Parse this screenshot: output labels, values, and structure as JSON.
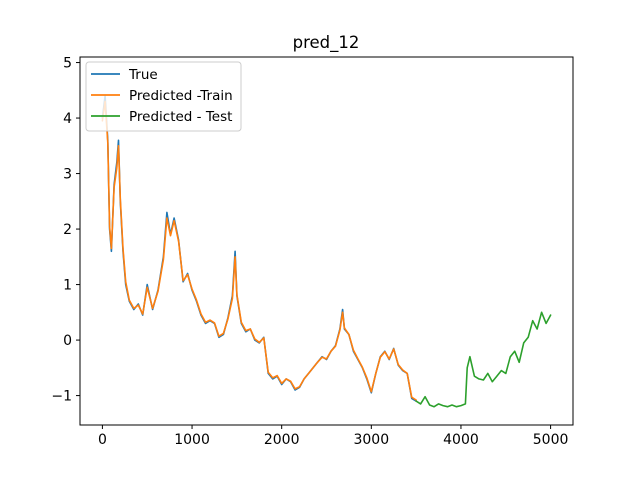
{
  "chart_data": {
    "type": "line",
    "title": "pred_12",
    "xlabel": "",
    "ylabel": "",
    "xlim": [
      -250,
      5250
    ],
    "ylim": [
      -1.53,
      5.1
    ],
    "xticks": [
      0,
      1000,
      2000,
      3000,
      4000,
      5000
    ],
    "yticks": [
      -1,
      0,
      1,
      2,
      3,
      4,
      5
    ],
    "xtick_labels": [
      "0",
      "1000",
      "2000",
      "3000",
      "4000",
      "5000"
    ],
    "ytick_labels": [
      "−1",
      "0",
      "1",
      "2",
      "3",
      "4",
      "5"
    ],
    "grid": false,
    "legend_position": "upper left",
    "series": [
      {
        "name": "True",
        "color": "#1f77b4",
        "x": [
          0,
          30,
          60,
          80,
          100,
          130,
          160,
          180,
          200,
          230,
          260,
          300,
          350,
          400,
          450,
          500,
          560,
          620,
          680,
          720,
          760,
          800,
          850,
          900,
          950,
          1000,
          1050,
          1100,
          1150,
          1200,
          1250,
          1300,
          1350,
          1400,
          1450,
          1480,
          1500,
          1550,
          1600,
          1650,
          1700,
          1750,
          1800,
          1850,
          1900,
          1950,
          2000,
          2050,
          2100,
          2150,
          2200,
          2250,
          2300,
          2350,
          2400,
          2450,
          2500,
          2550,
          2600,
          2650,
          2680,
          2700,
          2750,
          2800,
          2850,
          2900,
          2950,
          3000,
          3050,
          3100,
          3150,
          3200,
          3250,
          3300,
          3350,
          3400,
          3450,
          3500
        ],
        "y": [
          4.0,
          4.4,
          3.6,
          2.0,
          1.6,
          2.8,
          3.2,
          3.6,
          2.5,
          1.6,
          1.0,
          0.7,
          0.55,
          0.65,
          0.45,
          1.0,
          0.55,
          0.9,
          1.5,
          2.3,
          1.9,
          2.2,
          1.8,
          1.05,
          1.2,
          0.9,
          0.7,
          0.45,
          0.3,
          0.35,
          0.3,
          0.05,
          0.1,
          0.4,
          0.8,
          1.6,
          0.8,
          0.3,
          0.15,
          0.2,
          0.0,
          -0.05,
          0.05,
          -0.6,
          -0.7,
          -0.65,
          -0.8,
          -0.7,
          -0.75,
          -0.9,
          -0.85,
          -0.7,
          -0.6,
          -0.5,
          -0.4,
          -0.3,
          -0.35,
          -0.2,
          -0.1,
          0.2,
          0.55,
          0.2,
          0.1,
          -0.2,
          -0.35,
          -0.5,
          -0.7,
          -0.95,
          -0.6,
          -0.3,
          -0.2,
          -0.35,
          -0.15,
          -0.45,
          -0.55,
          -0.6,
          -1.05,
          -1.1
        ]
      },
      {
        "name": "Predicted -Train",
        "color": "#ff7f0e",
        "x": [
          0,
          30,
          60,
          80,
          100,
          130,
          160,
          180,
          200,
          230,
          260,
          300,
          350,
          400,
          450,
          500,
          560,
          620,
          680,
          720,
          760,
          800,
          850,
          900,
          950,
          1000,
          1050,
          1100,
          1150,
          1200,
          1250,
          1300,
          1350,
          1400,
          1450,
          1480,
          1500,
          1550,
          1600,
          1650,
          1700,
          1750,
          1800,
          1850,
          1900,
          1950,
          2000,
          2050,
          2100,
          2150,
          2200,
          2250,
          2300,
          2350,
          2400,
          2450,
          2500,
          2550,
          2600,
          2650,
          2680,
          2700,
          2750,
          2800,
          2850,
          2900,
          2950,
          3000,
          3050,
          3100,
          3150,
          3200,
          3250,
          3300,
          3350,
          3400,
          3450,
          3500
        ],
        "y": [
          3.95,
          4.3,
          3.55,
          2.05,
          1.65,
          2.75,
          3.1,
          3.5,
          2.55,
          1.65,
          1.05,
          0.72,
          0.57,
          0.63,
          0.47,
          0.95,
          0.57,
          0.88,
          1.45,
          2.2,
          1.88,
          2.15,
          1.78,
          1.07,
          1.18,
          0.92,
          0.72,
          0.47,
          0.32,
          0.36,
          0.31,
          0.07,
          0.12,
          0.38,
          0.75,
          1.5,
          0.82,
          0.32,
          0.17,
          0.2,
          0.02,
          -0.04,
          0.04,
          -0.58,
          -0.68,
          -0.64,
          -0.78,
          -0.7,
          -0.74,
          -0.88,
          -0.84,
          -0.7,
          -0.6,
          -0.5,
          -0.4,
          -0.31,
          -0.34,
          -0.2,
          -0.11,
          0.18,
          0.5,
          0.22,
          0.1,
          -0.18,
          -0.34,
          -0.49,
          -0.68,
          -0.93,
          -0.6,
          -0.31,
          -0.21,
          -0.34,
          -0.16,
          -0.44,
          -0.54,
          -0.6,
          -1.03,
          -1.08
        ]
      },
      {
        "name": "Predicted - Test",
        "color": "#2ca02c",
        "x": [
          3500,
          3550,
          3600,
          3650,
          3700,
          3750,
          3800,
          3850,
          3900,
          3950,
          4000,
          4050,
          4070,
          4100,
          4150,
          4200,
          4250,
          4300,
          4350,
          4400,
          4450,
          4500,
          4550,
          4600,
          4650,
          4700,
          4750,
          4800,
          4850,
          4900,
          4950,
          5000
        ],
        "y": [
          -1.1,
          -1.15,
          -1.02,
          -1.17,
          -1.2,
          -1.15,
          -1.18,
          -1.2,
          -1.17,
          -1.2,
          -1.18,
          -1.15,
          -0.5,
          -0.3,
          -0.65,
          -0.7,
          -0.72,
          -0.6,
          -0.75,
          -0.65,
          -0.55,
          -0.6,
          -0.3,
          -0.2,
          -0.4,
          -0.05,
          0.05,
          0.35,
          0.2,
          0.5,
          0.3,
          0.45
        ]
      }
    ]
  }
}
